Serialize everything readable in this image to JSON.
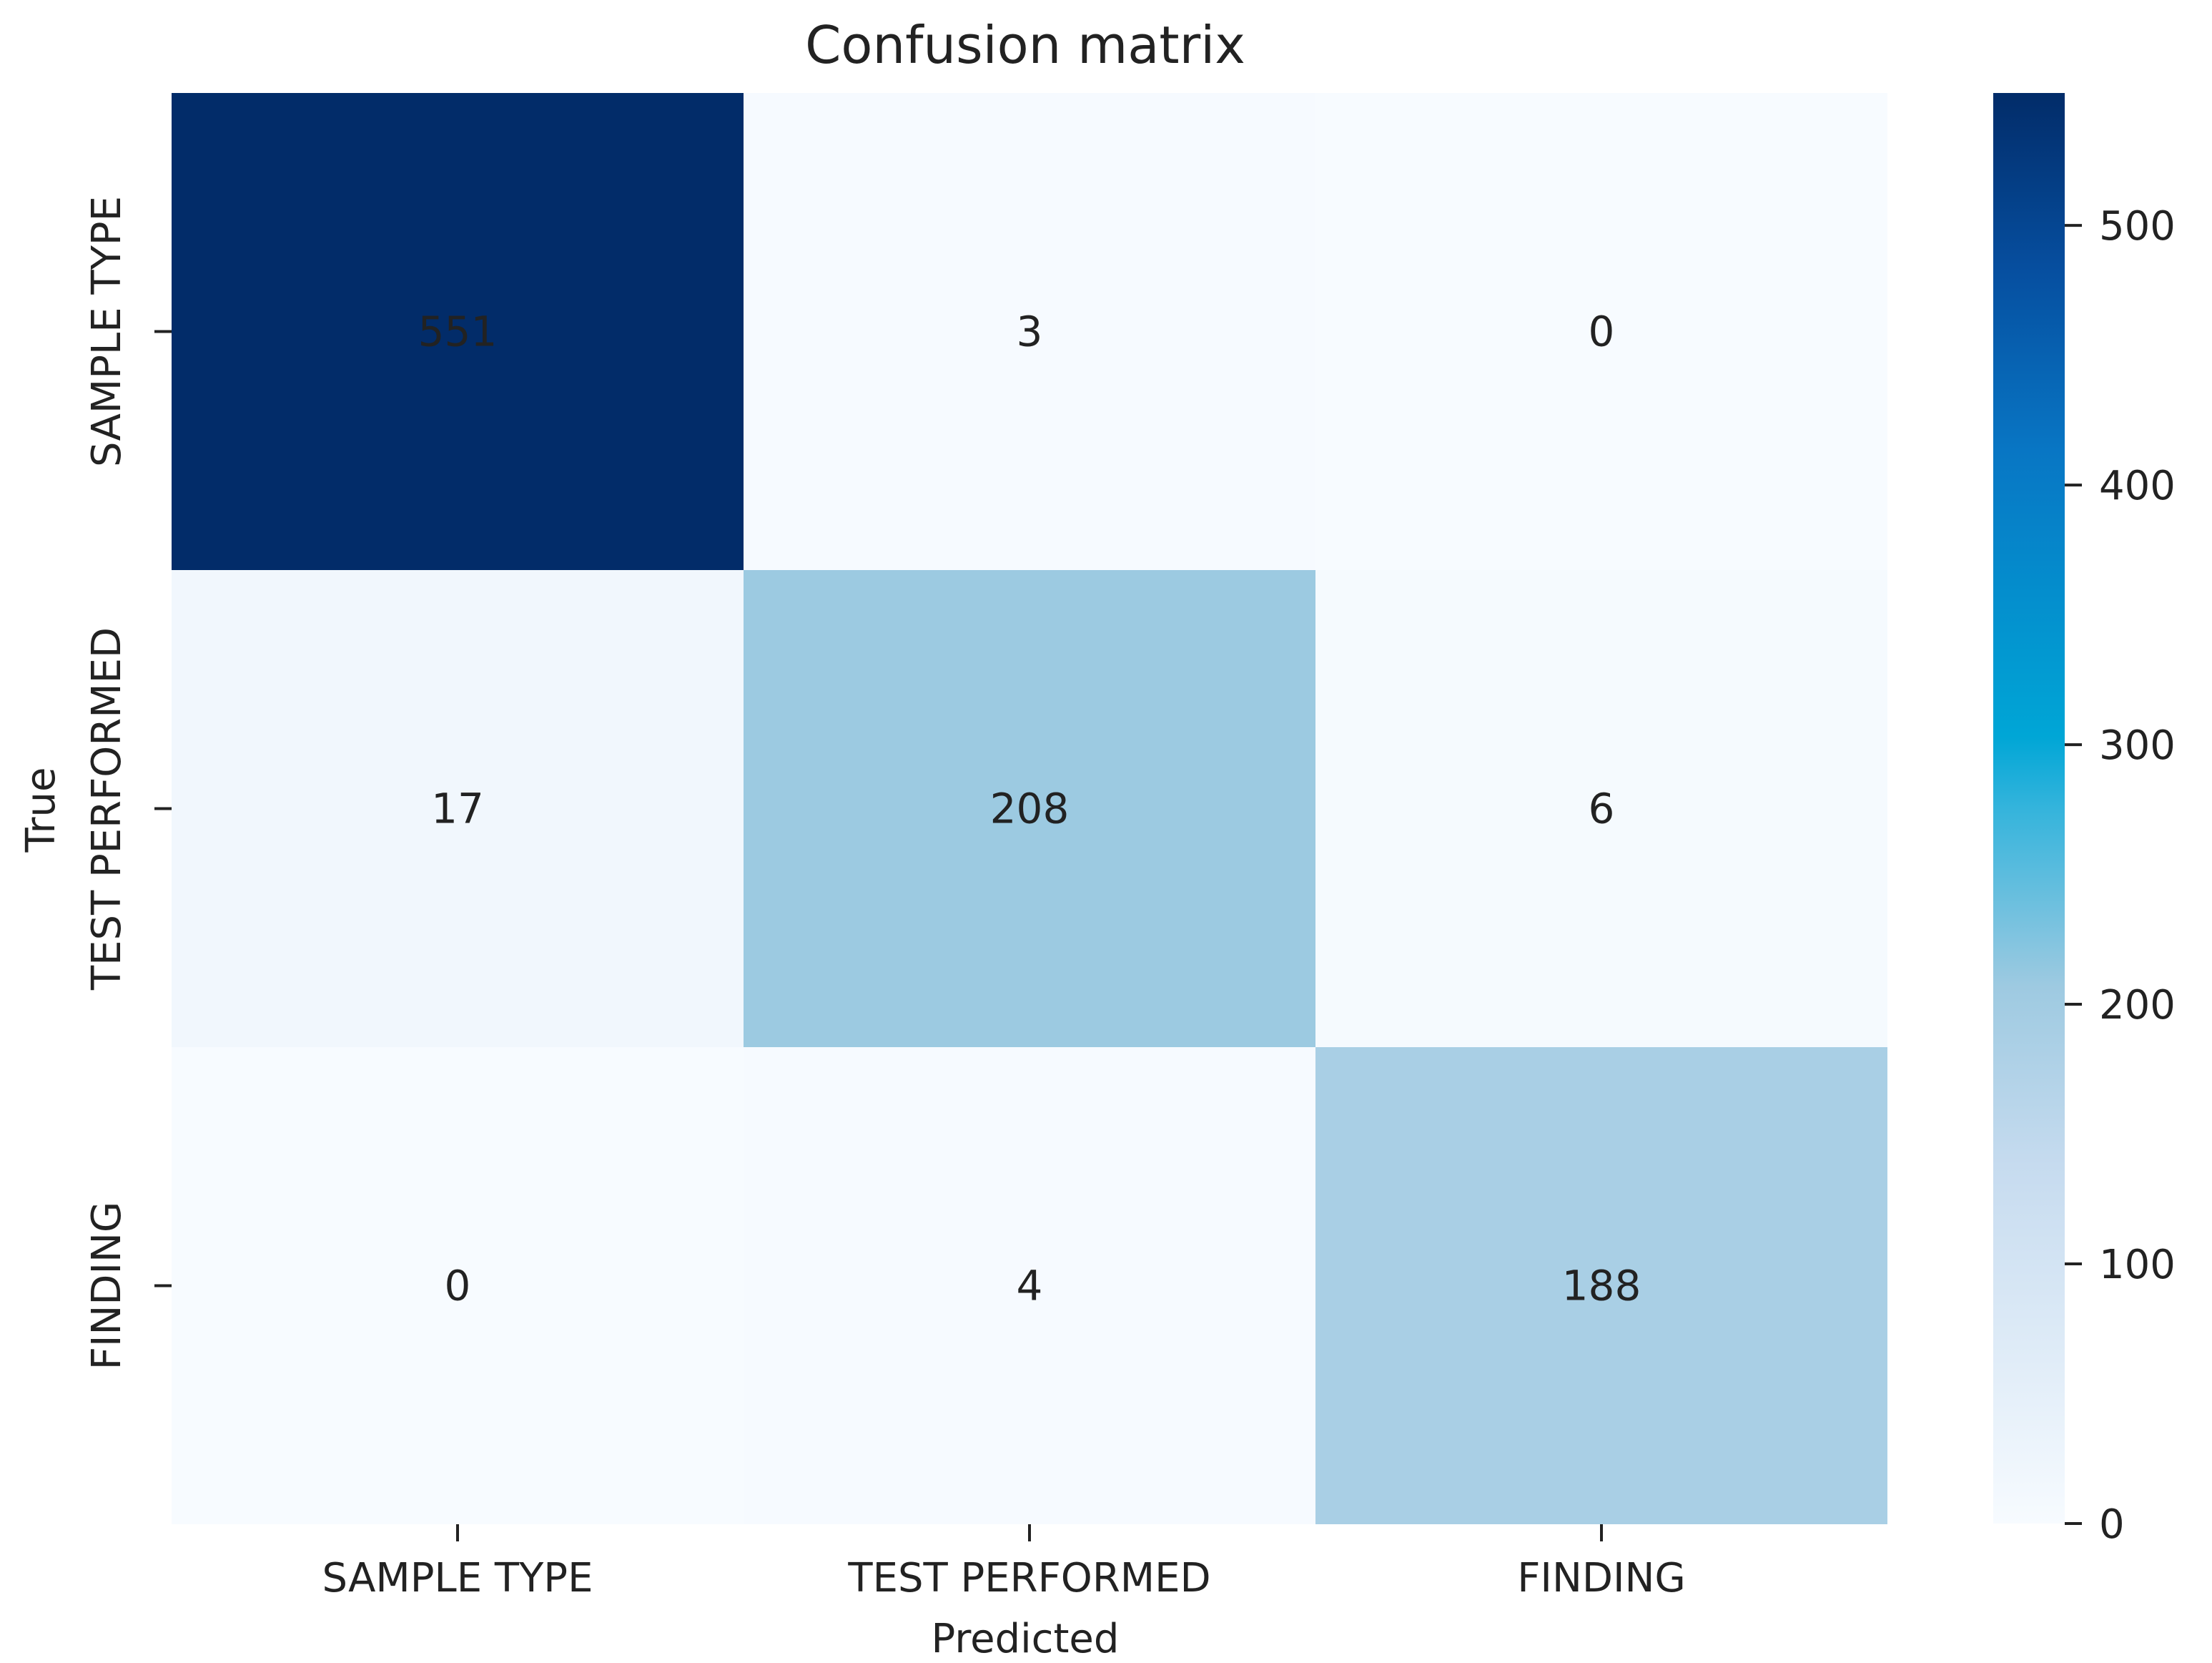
{
  "chart_data": {
    "type": "heatmap",
    "title": "Confusion matrix",
    "xlabel": "Predicted",
    "ylabel": "True",
    "x_categories": [
      "SAMPLE TYPE",
      "TEST PERFORMED",
      "FINDING"
    ],
    "y_categories": [
      "SAMPLE TYPE",
      "TEST PERFORMED",
      "FINDING"
    ],
    "matrix": [
      [
        551,
        3,
        0
      ],
      [
        17,
        208,
        6
      ],
      [
        0,
        4,
        188
      ]
    ],
    "colormap": "Blues",
    "colorbar": {
      "range": [
        0,
        551
      ],
      "ticks": [
        0,
        100,
        200,
        300,
        400,
        500
      ],
      "tick_labels": [
        "0",
        "100",
        "200",
        "300",
        "400",
        "500"
      ]
    },
    "grid": false
  }
}
